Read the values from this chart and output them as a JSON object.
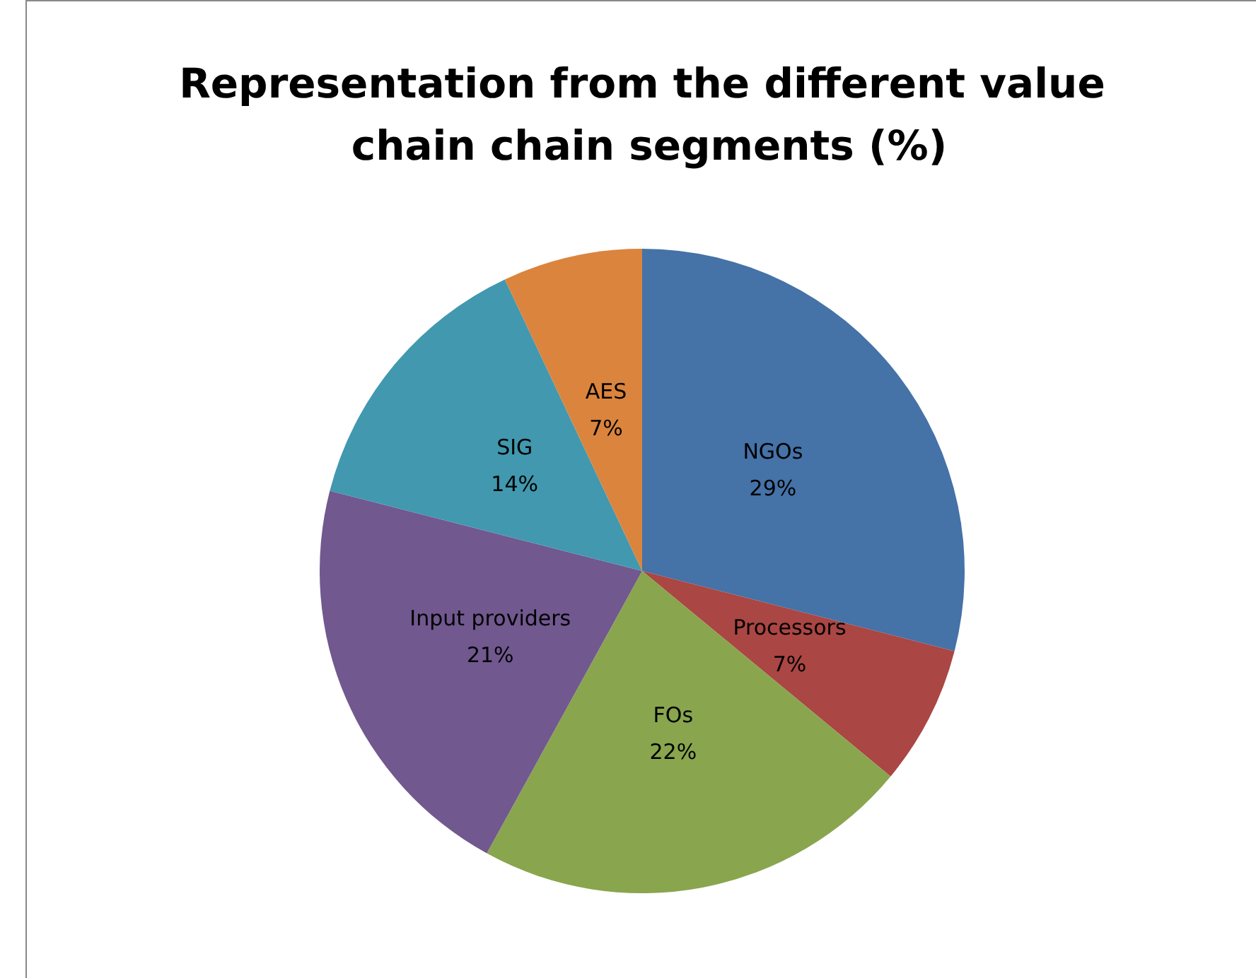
{
  "chart_data": {
    "type": "pie",
    "title": "Representation from the different value chain chain segments (%)",
    "categories": [
      "NGOs",
      "Processors",
      "FOs",
      "Input providers",
      "SIG",
      "AES"
    ],
    "values": [
      29,
      7,
      22,
      21,
      14,
      7
    ],
    "value_labels": [
      "29%",
      "7%",
      "22%",
      "21%",
      "14%",
      "7%"
    ],
    "colors": [
      "#4572a7",
      "#aa4643",
      "#89a54e",
      "#71588f",
      "#4198af",
      "#db843d"
    ],
    "legend": false
  }
}
